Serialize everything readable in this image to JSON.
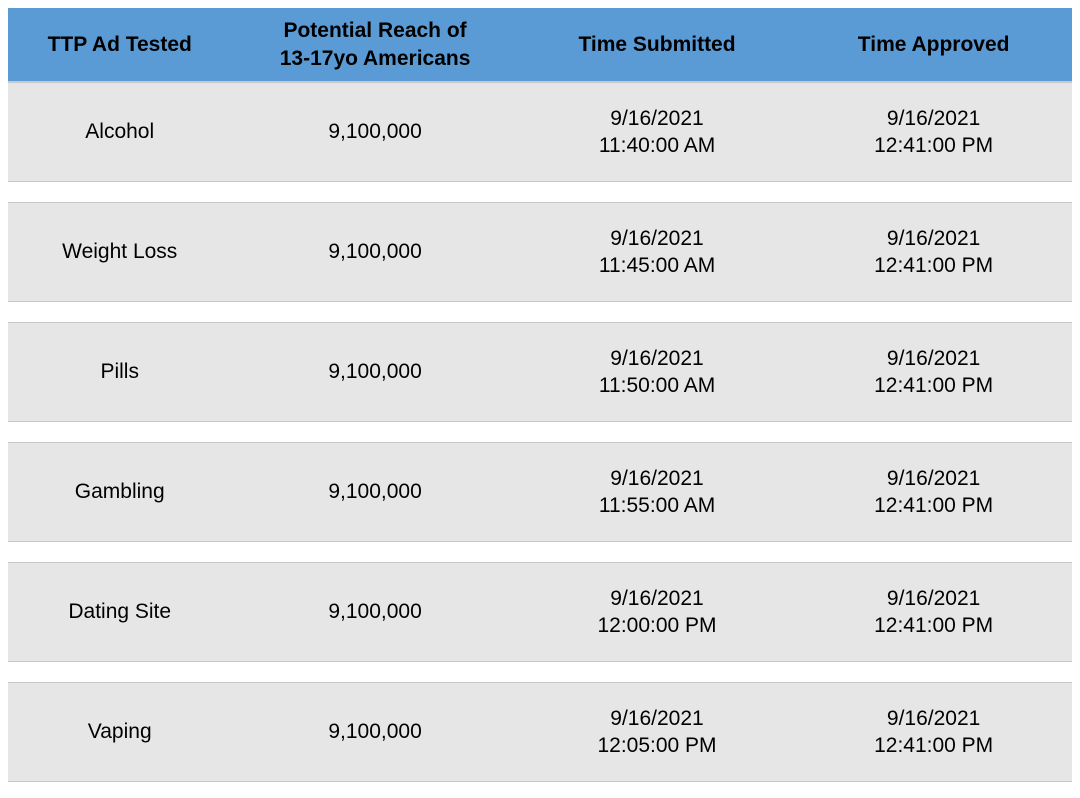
{
  "table": {
    "type": "table",
    "header_bg": "#5a9bd5",
    "row_bg": "#e6e6e6",
    "gap_bg": "#ffffff",
    "border_color": "#c8c8c8",
    "text_color": "#000000",
    "header_fontsize": 21,
    "cell_fontsize": 21,
    "columns": [
      {
        "label": "TTP Ad Tested",
        "width_pct": 21
      },
      {
        "label_line1": "Potential Reach of",
        "label_line2": "13-17yo Americans",
        "width_pct": 27
      },
      {
        "label": "Time Submitted",
        "width_pct": 26
      },
      {
        "label": "Time Approved",
        "width_pct": 26
      }
    ],
    "rows": [
      {
        "ad_tested": "Alcohol",
        "reach": "9,100,000",
        "submitted_date": "9/16/2021",
        "submitted_time": "11:40:00 AM",
        "approved_date": "9/16/2021",
        "approved_time": "12:41:00 PM"
      },
      {
        "ad_tested": "Weight Loss",
        "reach": "9,100,000",
        "submitted_date": "9/16/2021",
        "submitted_time": "11:45:00 AM",
        "approved_date": "9/16/2021",
        "approved_time": "12:41:00 PM"
      },
      {
        "ad_tested": "Pills",
        "reach": "9,100,000",
        "submitted_date": "9/16/2021",
        "submitted_time": "11:50:00 AM",
        "approved_date": "9/16/2021",
        "approved_time": "12:41:00 PM"
      },
      {
        "ad_tested": "Gambling",
        "reach": "9,100,000",
        "submitted_date": "9/16/2021",
        "submitted_time": "11:55:00 AM",
        "approved_date": "9/16/2021",
        "approved_time": "12:41:00 PM"
      },
      {
        "ad_tested": "Dating Site",
        "reach": "9,100,000",
        "submitted_date": "9/16/2021",
        "submitted_time": "12:00:00 PM",
        "approved_date": "9/16/2021",
        "approved_time": "12:41:00 PM"
      },
      {
        "ad_tested": "Vaping",
        "reach": "9,100,000",
        "submitted_date": "9/16/2021",
        "submitted_time": "12:05:00 PM",
        "approved_date": "9/16/2021",
        "approved_time": "12:41:00 PM"
      }
    ]
  }
}
